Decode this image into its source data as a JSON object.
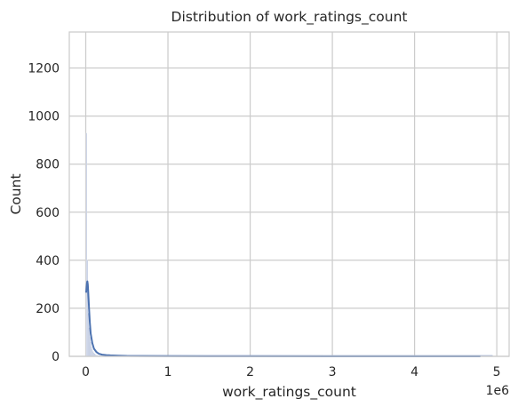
{
  "chart_data": {
    "type": "histogram",
    "title": "Distribution of work_ratings_count",
    "xlabel": "work_ratings_count",
    "ylabel": "Count",
    "x_offset_label": "1e6",
    "xlim": [
      -200000,
      5150000
    ],
    "ylim": [
      0,
      1350
    ],
    "x_ticks": [
      0,
      1,
      2,
      3,
      4,
      5
    ],
    "x_tick_scale": 1000000,
    "y_ticks": [
      0,
      200,
      400,
      600,
      800,
      1000,
      1200
    ],
    "grid": true,
    "colors": {
      "bars": "#a9b7d6",
      "bar_edge": "#ffffff",
      "kde": "#4c72b0",
      "grid": "#cccccc",
      "axes_edge": "#cccccc"
    },
    "histogram": {
      "bin_width": 10000,
      "bin_start": 5000,
      "counts": [
        930,
        400,
        180,
        120,
        80,
        60,
        42,
        30,
        22,
        16,
        12,
        9,
        7,
        6,
        5,
        4,
        4,
        3,
        3,
        2,
        2,
        2,
        2,
        1,
        1,
        1,
        1,
        1,
        1,
        1,
        1,
        1,
        1,
        1,
        1,
        1,
        1,
        1,
        1,
        1
      ]
    },
    "kde": {
      "x": [
        5000,
        10000,
        15000,
        20000,
        25000,
        30000,
        40000,
        50000,
        60000,
        80000,
        100000,
        130000,
        160000,
        200000,
        250000,
        300000,
        400000,
        500000,
        700000,
        1000000,
        1500000,
        2000000,
        3000000,
        4000000,
        4800000
      ],
      "y": [
        265,
        285,
        305,
        312,
        300,
        270,
        200,
        140,
        95,
        55,
        32,
        18,
        11,
        7,
        5,
        4,
        3,
        2,
        1.5,
        1,
        0.6,
        0.4,
        0.2,
        0.1,
        0.05
      ]
    }
  }
}
